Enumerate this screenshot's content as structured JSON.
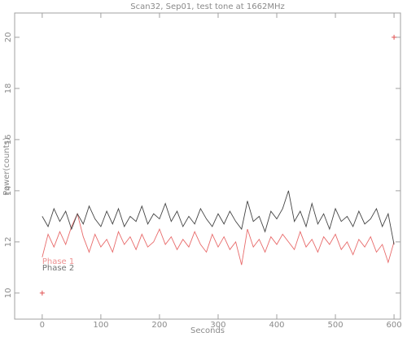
{
  "chart_data": {
    "type": "line",
    "title": "Scan32, Sep01, test tone at 1662MHz",
    "x_label": "Seconds",
    "y_label": "Power(counts)",
    "x": [
      0,
      10,
      20,
      30,
      40,
      50,
      60,
      70,
      80,
      90,
      100,
      110,
      120,
      130,
      140,
      150,
      160,
      170,
      180,
      190,
      200,
      210,
      220,
      230,
      240,
      250,
      260,
      270,
      280,
      290,
      300,
      310,
      320,
      330,
      340,
      350,
      360,
      370,
      380,
      390,
      400,
      410,
      420,
      430,
      440,
      450,
      460,
      470,
      480,
      490,
      500,
      510,
      520,
      530,
      540,
      550,
      560,
      570,
      580,
      590,
      600
    ],
    "series": [
      {
        "name": "Phase 1",
        "color": "#e86a6a",
        "values": [
          11.4,
          12.3,
          11.8,
          12.4,
          11.9,
          12.6,
          13.1,
          12.2,
          11.6,
          12.3,
          11.8,
          12.1,
          11.6,
          12.4,
          11.9,
          12.2,
          11.7,
          12.3,
          11.8,
          12.0,
          12.5,
          11.9,
          12.2,
          11.7,
          12.1,
          11.8,
          12.4,
          11.9,
          11.6,
          12.3,
          11.8,
          12.2,
          11.7,
          12.0,
          11.1,
          12.5,
          11.8,
          12.1,
          11.6,
          12.2,
          11.9,
          12.3,
          12.0,
          11.7,
          12.4,
          11.8,
          12.1,
          11.6,
          12.2,
          11.9,
          12.3,
          11.7,
          12.0,
          11.5,
          12.1,
          11.8,
          12.2,
          11.6,
          11.9,
          11.2,
          12.0
        ]
      },
      {
        "name": "Phase 2",
        "color": "#444444",
        "values": [
          13.0,
          12.6,
          13.3,
          12.8,
          13.2,
          12.5,
          13.1,
          12.7,
          13.4,
          12.9,
          12.6,
          13.2,
          12.7,
          13.3,
          12.6,
          13.0,
          12.8,
          13.4,
          12.7,
          13.1,
          12.9,
          13.5,
          12.8,
          13.2,
          12.6,
          13.0,
          12.7,
          13.3,
          12.9,
          12.6,
          13.1,
          12.7,
          13.2,
          12.8,
          12.5,
          13.6,
          12.8,
          13.0,
          12.4,
          13.2,
          12.9,
          13.3,
          14.0,
          12.8,
          13.2,
          12.6,
          13.5,
          12.7,
          13.1,
          12.5,
          13.3,
          12.8,
          13.0,
          12.6,
          13.2,
          12.7,
          12.9,
          13.3,
          12.6,
          13.1,
          11.9
        ]
      }
    ],
    "points": {
      "x": [
        0,
        600
      ],
      "values": [
        10,
        20
      ],
      "color": "#e05050"
    },
    "xlim": [
      -47,
      611
    ],
    "ylim": [
      8.98,
      20.95
    ],
    "xticks": [
      0,
      100,
      200,
      300,
      400,
      500,
      600
    ],
    "yticks": [
      10,
      12,
      14,
      16,
      18,
      20
    ]
  }
}
